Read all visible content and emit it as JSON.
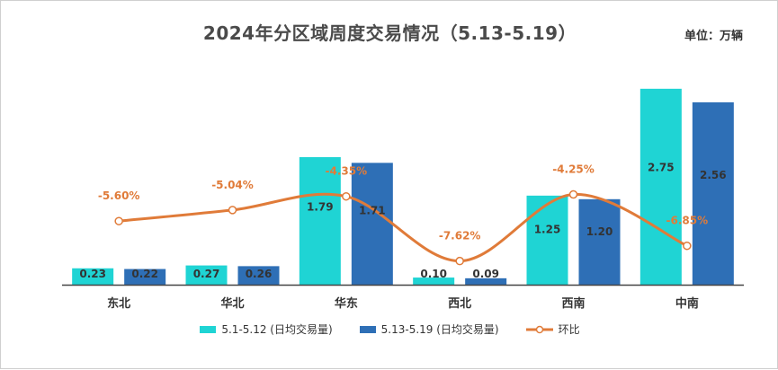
{
  "chart_data": {
    "type": "bar",
    "title": "2024年分区域周度交易情况（5.13-5.19）",
    "unit_label": "单位：万辆",
    "categories": [
      "东北",
      "华北",
      "华东",
      "西北",
      "西南",
      "中南"
    ],
    "series": [
      {
        "name": "5.1-5.12 (日均交易量)",
        "values": [
          0.23,
          0.27,
          1.79,
          0.1,
          1.25,
          2.75
        ],
        "labels": [
          "0.23",
          "0.27",
          "1.79",
          "0.10",
          "1.25",
          "2.75"
        ],
        "color": "#1fd4d4"
      },
      {
        "name": "5.13-5.19 (日均交易量)",
        "values": [
          0.22,
          0.26,
          1.71,
          0.09,
          1.2,
          2.56
        ],
        "labels": [
          "0.22",
          "0.26",
          "1.71",
          "0.09",
          "1.20",
          "2.56"
        ],
        "color": "#2e6fb6"
      }
    ],
    "line_series": {
      "name": "环比",
      "values": [
        -5.6,
        -5.04,
        -4.35,
        -7.62,
        -4.25,
        -6.85
      ],
      "labels": [
        "-5.60%",
        "-5.04%",
        "-4.35%",
        "-7.62%",
        "-4.25%",
        "-6.85%"
      ],
      "color": "#e07b39"
    },
    "ylim": [
      0,
      3.0
    ],
    "line_ylim": [
      -10,
      0
    ],
    "grid": false,
    "legend_position": "bottom"
  },
  "legend": {
    "series1": "5.1-5.12 (日均交易量)",
    "series2": "5.13-5.19 (日均交易量)",
    "line": "环比"
  }
}
